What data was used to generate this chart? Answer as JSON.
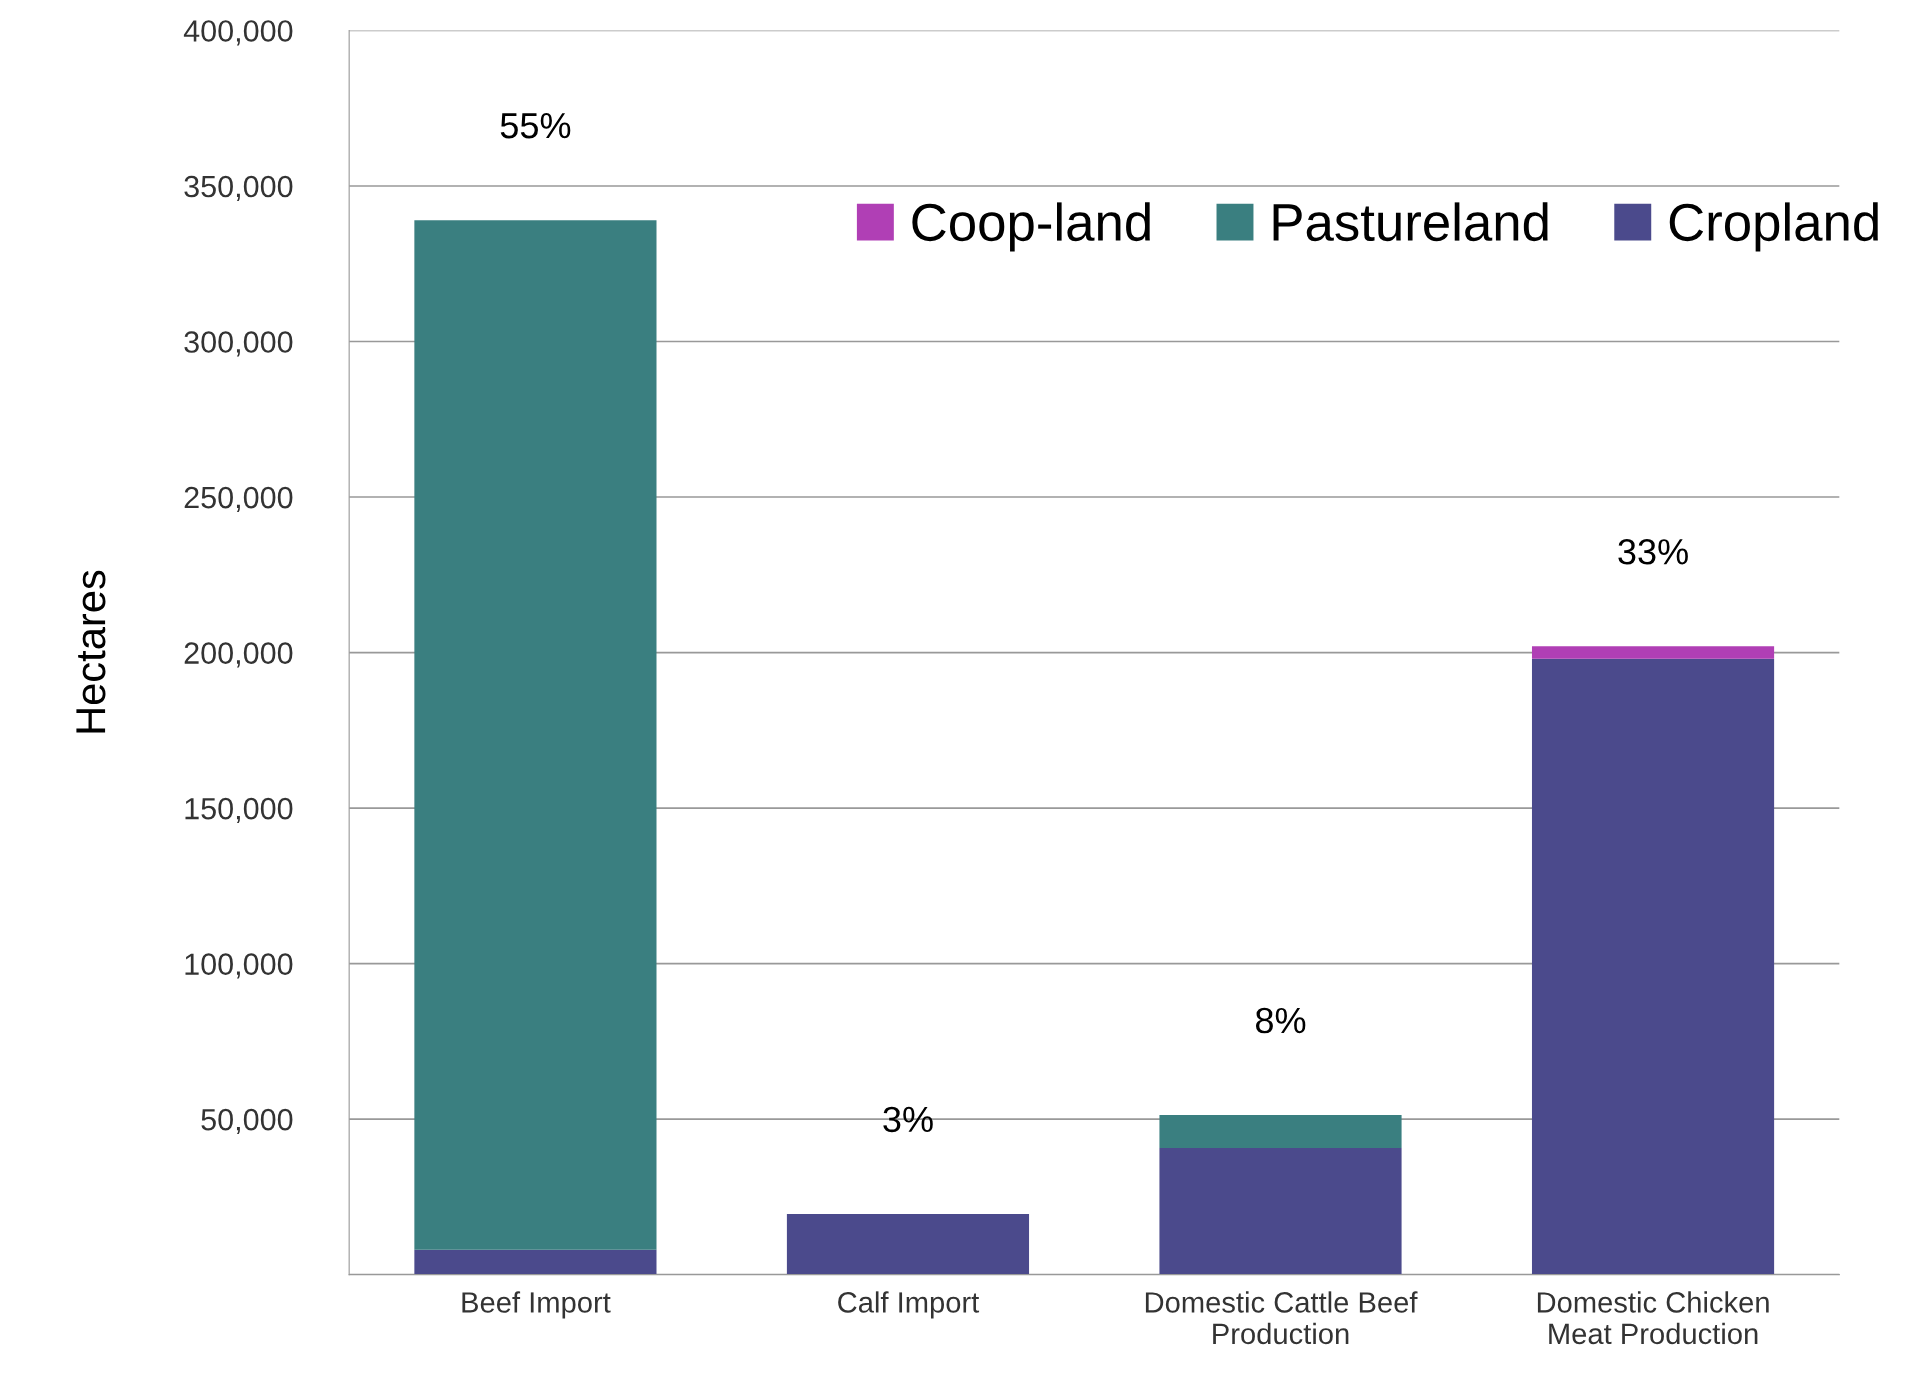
{
  "chart_data": {
    "type": "bar",
    "stacked": true,
    "ylabel": "Hectares",
    "categories": [
      "Beef Import",
      "Calf Import",
      "Domestic Cattle Beef\nProduction",
      "Domestic Chicken\nMeat Production"
    ],
    "series": [
      {
        "name": "Cropland",
        "color": "#4b4a8c",
        "values": [
          8000,
          19500,
          40700,
          198000
        ]
      },
      {
        "name": "Pastureland",
        "color": "#3a7f80",
        "values": [
          331000,
          null,
          10600,
          null
        ]
      },
      {
        "name": "Coop-land",
        "color": "#b03fb5",
        "values": [
          null,
          null,
          null,
          4000
        ]
      }
    ],
    "annotations": [
      "55%",
      "3%",
      "8%",
      "33%"
    ],
    "ylim": [
      0,
      400000
    ],
    "yticks": [
      {
        "value": 0,
        "label": null
      },
      {
        "value": 50000,
        "label": "50,000"
      },
      {
        "value": 100000,
        "label": "100,000"
      },
      {
        "value": 150000,
        "label": "150,000"
      },
      {
        "value": 200000,
        "label": "200,000"
      },
      {
        "value": 250000,
        "label": "250,000"
      },
      {
        "value": 300000,
        "label": "300,000"
      },
      {
        "value": 350000,
        "label": "350,000"
      },
      {
        "value": 400000,
        "label": "400,000"
      }
    ],
    "grid": "y",
    "legend": "top right"
  }
}
